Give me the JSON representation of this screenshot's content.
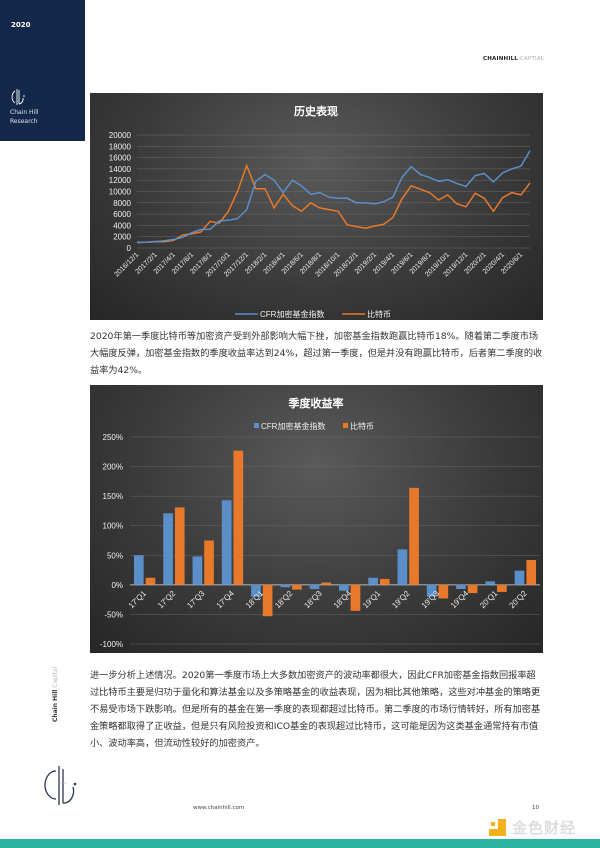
{
  "sidebar": {
    "year": "2020",
    "brand_line1": "Chain Hill",
    "brand_line2": "Research"
  },
  "header": {
    "brand_bold": "CHAINHILL",
    "brand_light": "CAPTIAL"
  },
  "paragraphs": [
    "2020年第一季度比特币等加密资产受到外部影响大幅下挫，加密基金指数跑赢比特币18%。随着第二季度市场大幅度反弹，加密基金指数的季度收益率达到24%，超过第一季度，但是并没有跑赢比特币，后者第二季度的收益率为42%。",
    "进一步分析上述情况。2020第一季度市场上大多数加密资产的波动率都很大，因此CFR加密基金指数回报率超过比特币主要是归功于量化和算法基金以及多策略基金的收益表现，因为相比其他策略，这些对冲基金的策略更不易受市场下跌影响。但是所有的基金在第一季度的表现都超过比特币。第二季度的市场行情转好，所有加密基金策略都取得了正收益，但是只有风险投资和ICO基金的表现超过比特币，这可能是因为这类基金通常持有市值小、波动率高，但流动性较好的加密资产。"
  ],
  "footer": {
    "vertical_brand_bold": "Chain Hill",
    "vertical_brand_light": "Capital",
    "url": "www.chainhill.com",
    "page_number": "10",
    "watermark": "金色财经"
  },
  "colors": {
    "cfr": "#5b8fc9",
    "btc": "#e8782a",
    "sidebar": "#14284a",
    "teal": "#2bb3a1"
  },
  "chart_data": [
    {
      "type": "line",
      "title": "历史表现",
      "ylim": [
        0,
        20000
      ],
      "yticks": [
        "0",
        "2000",
        "4000",
        "6000",
        "8000",
        "10000",
        "12000",
        "14000",
        "16000",
        "18000",
        "20000"
      ],
      "x_tick_labels": [
        "2016/12/1",
        "2017/2/1",
        "2017/4/1",
        "2017/6/1",
        "2017/8/1",
        "2017/10/1",
        "2017/12/1",
        "2018/2/1",
        "2018/4/1",
        "2018/6/1",
        "2018/8/1",
        "2018/10/1",
        "2018/12/1",
        "2019/2/1",
        "2019/4/1",
        "2019/6/1",
        "2019/8/1",
        "2019/10/1",
        "2019/12/1",
        "2020/2/1",
        "2020/4/1",
        "2020/6/1"
      ],
      "grid": true,
      "legend": "bottom",
      "series": [
        {
          "name": "CFR加密基金指数",
          "values": [
            1000,
            1000,
            1100,
            1300,
            1500,
            1900,
            2700,
            3300,
            3300,
            4800,
            4900,
            5200,
            6800,
            11800,
            13000,
            12000,
            9800,
            12000,
            11000,
            9500,
            9800,
            9000,
            8800,
            8800,
            8000,
            8000,
            7800,
            8200,
            9000,
            12500,
            14400,
            13000,
            12500,
            11800,
            12100,
            11400,
            10900,
            12800,
            13200,
            11700,
            13300,
            14000,
            14500,
            17200
          ]
        },
        {
          "name": "比特币",
          "values": [
            950,
            1000,
            1150,
            1100,
            1350,
            2300,
            2500,
            2850,
            4700,
            4400,
            6500,
            10000,
            14600,
            10500,
            10500,
            7100,
            9500,
            7500,
            6500,
            8000,
            7100,
            6800,
            6500,
            4100,
            3800,
            3500,
            3900,
            4200,
            5400,
            8700,
            11000,
            10400,
            9800,
            8500,
            9400,
            7800,
            7300,
            9700,
            8800,
            6500,
            8900,
            9800,
            9400,
            11500
          ]
        }
      ]
    },
    {
      "type": "bar",
      "title": "季度收益率",
      "ylim": [
        -100,
        250
      ],
      "yticks": [
        "-100%",
        "-50%",
        "0%",
        "50%",
        "100%",
        "150%",
        "200%",
        "250%"
      ],
      "categories": [
        "17'Q1",
        "17'Q2",
        "17'Q3",
        "17'Q4",
        "18'Q1",
        "18'Q2",
        "18'Q3",
        "18'Q4",
        "19'Q1",
        "19'Q2",
        "19'Q3",
        "19'Q4",
        "20'Q1",
        "20'Q2"
      ],
      "grid": true,
      "legend": "top",
      "series": [
        {
          "name": "CFR加密基金指数",
          "values": [
            50,
            121,
            48,
            143,
            -20,
            -4,
            -7,
            -10,
            12,
            60,
            -20,
            -7,
            6,
            24
          ]
        },
        {
          "name": "比特币",
          "values": [
            12,
            131,
            75,
            227,
            -53,
            -8,
            4,
            -44,
            10,
            164,
            -23,
            -14,
            -12,
            42
          ]
        }
      ]
    }
  ]
}
